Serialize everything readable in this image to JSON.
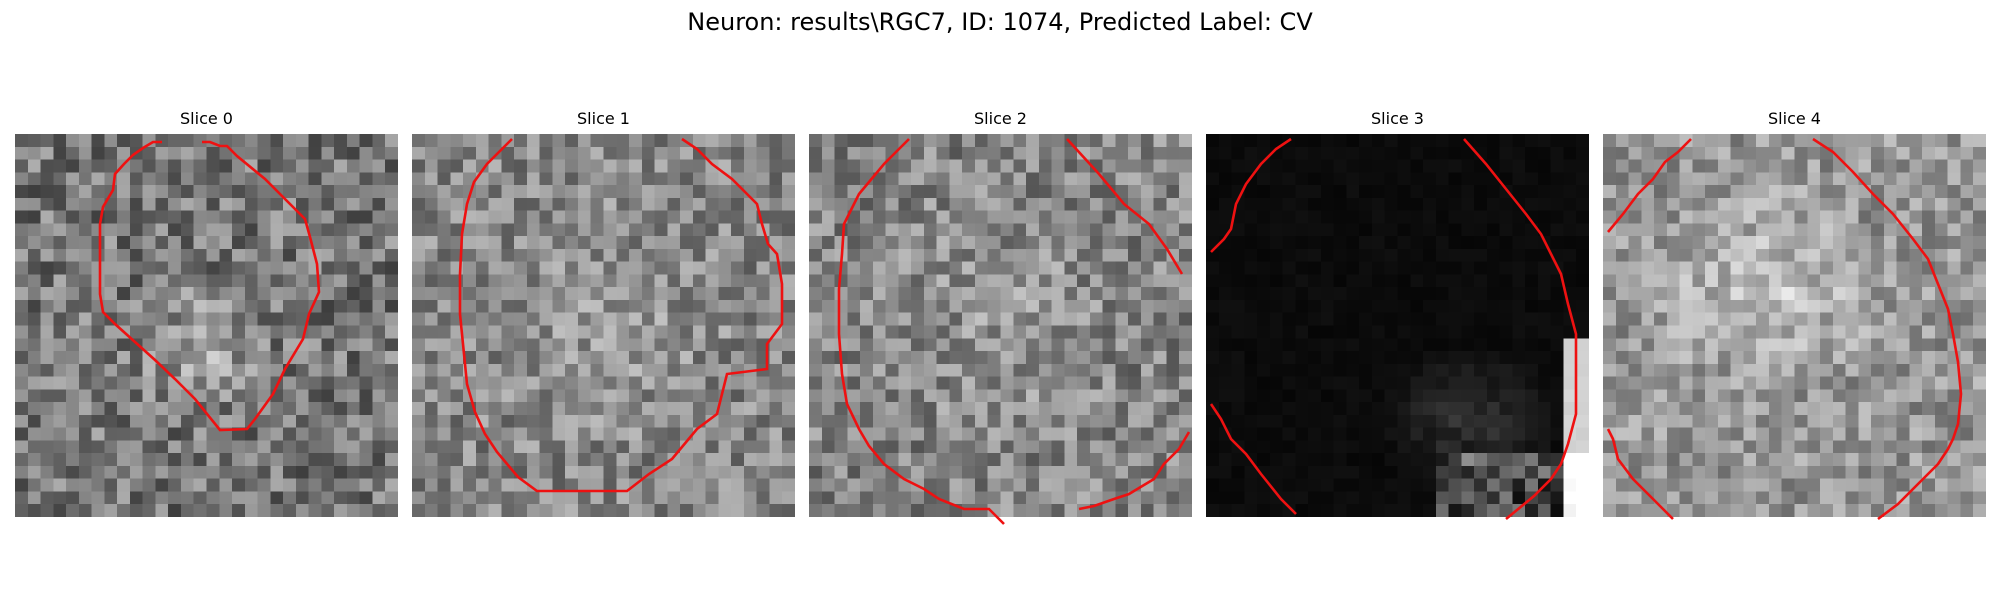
{
  "figure": {
    "title": "Neuron: results\\RGC7, ID: 1074, Predicted Label: CV"
  },
  "slices": [
    {
      "title": "Slice 0"
    },
    {
      "title": "Slice 1"
    },
    {
      "title": "Slice 2"
    },
    {
      "title": "Slice 3"
    },
    {
      "title": "Slice 4"
    }
  ],
  "colors": {
    "contour": "#ee1111",
    "background": "#ffffff",
    "image_colormap": "grayscale"
  }
}
